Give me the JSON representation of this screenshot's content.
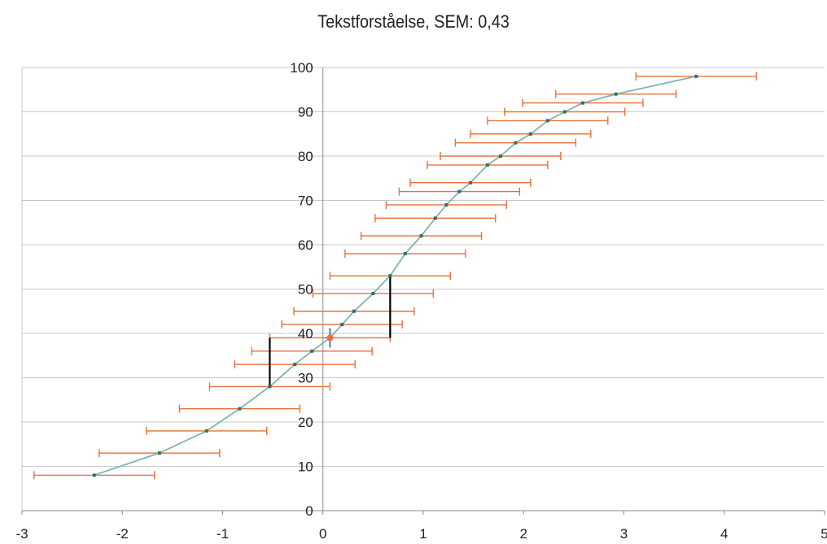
{
  "chart_data": {
    "type": "scatter",
    "title": "Tekstforståelse, SEM: 0,43",
    "xlabel": "",
    "ylabel": "",
    "xlim": [
      -3,
      5
    ],
    "ylim": [
      0,
      100
    ],
    "x_ticks": [
      "-3",
      "-2",
      "-1",
      "0",
      "1",
      "2",
      "3",
      "4",
      "5"
    ],
    "y_ticks": [
      "0",
      "10",
      "20",
      "30",
      "40",
      "50",
      "60",
      "70",
      "80",
      "90",
      "100"
    ],
    "grid": true,
    "sem": 0.43,
    "series": [
      {
        "points": [
          {
            "x": -2.28,
            "y": 8
          },
          {
            "x": -1.63,
            "y": 13
          },
          {
            "x": -1.16,
            "y": 18
          },
          {
            "x": -0.83,
            "y": 23
          },
          {
            "x": -0.53,
            "y": 28
          },
          {
            "x": -0.28,
            "y": 33
          },
          {
            "x": -0.11,
            "y": 36
          },
          {
            "x": 0.07,
            "y": 39
          },
          {
            "x": 0.19,
            "y": 42
          },
          {
            "x": 0.31,
            "y": 45
          },
          {
            "x": 0.5,
            "y": 49
          },
          {
            "x": 0.67,
            "y": 53
          },
          {
            "x": 0.82,
            "y": 58
          },
          {
            "x": 0.98,
            "y": 62
          },
          {
            "x": 1.12,
            "y": 66
          },
          {
            "x": 1.23,
            "y": 69
          },
          {
            "x": 1.36,
            "y": 72
          },
          {
            "x": 1.47,
            "y": 74
          },
          {
            "x": 1.64,
            "y": 78
          },
          {
            "x": 1.77,
            "y": 80
          },
          {
            "x": 1.92,
            "y": 83
          },
          {
            "x": 2.07,
            "y": 85
          },
          {
            "x": 2.24,
            "y": 88
          },
          {
            "x": 2.41,
            "y": 90
          },
          {
            "x": 2.59,
            "y": 92
          },
          {
            "x": 2.92,
            "y": 94
          },
          {
            "x": 3.72,
            "y": 98
          }
        ],
        "error_x": [
          0.6,
          0.6,
          0.6,
          0.6,
          0.6,
          0.6,
          0.6,
          0.6,
          0.6,
          0.6,
          0.6,
          0.6,
          0.6,
          0.6,
          0.6,
          0.6,
          0.6,
          0.6,
          0.6,
          0.6,
          0.6,
          0.6,
          0.6,
          0.6,
          0.6,
          0.6,
          0.6
        ]
      }
    ],
    "highlight_point": {
      "x": 0.07,
      "y": 39
    },
    "bracket_lines": [
      {
        "x": -0.53,
        "y_from": 28,
        "y_to": 39
      },
      {
        "x": 0.67,
        "y_from": 39,
        "y_to": 53
      }
    ],
    "colors": {
      "line": "#7fb3b3",
      "error_bar": "#e8703a",
      "marker": "#2e6f6f",
      "bracket": "#000000",
      "highlight": "#e8703a",
      "highlight_cross": "#5577aa",
      "grid": "#c8c8c8",
      "axis": "#888888"
    }
  }
}
